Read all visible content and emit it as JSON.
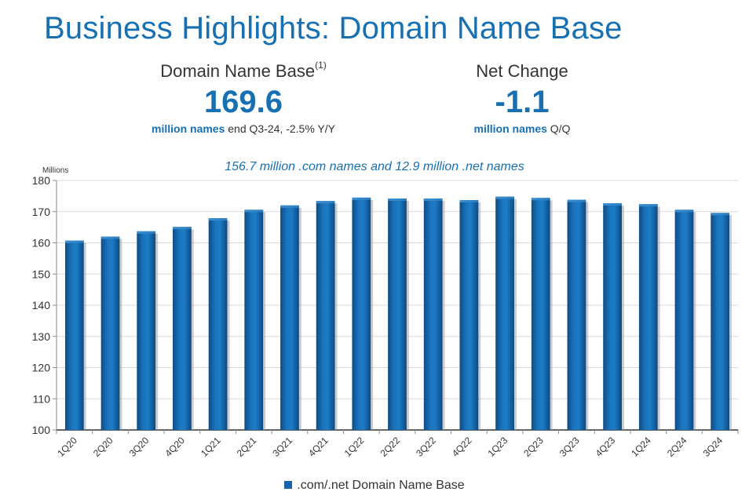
{
  "page": {
    "title": "Business Highlights: Domain Name Base"
  },
  "kpis": {
    "left": {
      "label": "Domain Name Base",
      "footnote": "(1)",
      "value": "169.6",
      "sub_bold": "million names",
      "sub_rest": " end Q3-24, -2.5% Y/Y"
    },
    "right": {
      "label": "Net Change",
      "value": "-1.1",
      "sub_bold": "million names",
      "sub_rest": " Q/Q"
    }
  },
  "colors": {
    "accent": "#1670b2",
    "bar": "#1565a8"
  },
  "chart_data": {
    "type": "bar",
    "subtitle": "156.7 million .com names and 12.9 million .net names",
    "ylabel": "Millions",
    "xlabel": "",
    "ylim": [
      100,
      180
    ],
    "yticks": [
      100,
      110,
      120,
      130,
      140,
      150,
      160,
      170,
      180
    ],
    "grid": true,
    "legend_position": "bottom",
    "categories": [
      "1Q20",
      "2Q20",
      "3Q20",
      "4Q20",
      "1Q21",
      "2Q21",
      "3Q21",
      "4Q21",
      "1Q22",
      "2Q22",
      "3Q22",
      "4Q22",
      "1Q23",
      "2Q23",
      "3Q23",
      "4Q23",
      "1Q24",
      "2Q24",
      "3Q24"
    ],
    "series": [
      {
        "name": ".com/.net Domain Name Base",
        "values": [
          160.7,
          162.0,
          163.7,
          165.1,
          167.9,
          170.6,
          172.0,
          173.4,
          174.5,
          174.2,
          174.2,
          173.7,
          174.8,
          174.4,
          173.8,
          172.7,
          172.4,
          170.6,
          169.6
        ]
      }
    ]
  }
}
